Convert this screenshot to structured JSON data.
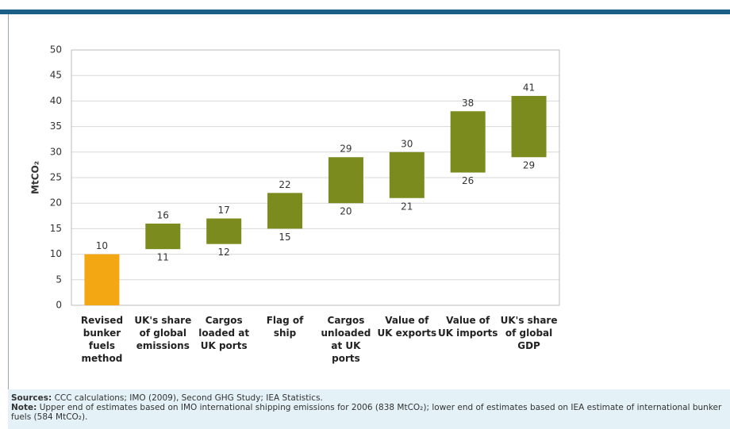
{
  "chart_data": {
    "type": "floating_bar",
    "y_label": "MtCO₂",
    "categories": [
      "Revised bunker fuels method",
      "UK's share of global emissions",
      "Cargos loaded at UK ports",
      "Flag of ship",
      "Cargos unloaded at UK ports",
      "Value of UK exports",
      "Value of UK imports",
      "UK's share of global GDP"
    ],
    "low": [
      0,
      11,
      12,
      15,
      20,
      21,
      26,
      29
    ],
    "high": [
      10,
      16,
      17,
      22,
      29,
      30,
      38,
      41
    ],
    "colors": [
      "#f3a712",
      "#7b8b1d",
      "#7b8b1d",
      "#7b8b1d",
      "#7b8b1d",
      "#7b8b1d",
      "#7b8b1d",
      "#7b8b1d"
    ],
    "ylim": [
      0,
      50
    ],
    "yticks": [
      0,
      5,
      10,
      15,
      20,
      25,
      30,
      35,
      40,
      45,
      50
    ],
    "grid": true
  },
  "footer": {
    "sources_label": "Sources:",
    "sources": "CCC calculations; IMO (2009), Second GHG Study; IEA Statistics.",
    "note_label": "Note:",
    "note": "Upper end of estimates based on IMO international shipping emissions for 2006 (838 MtCO₂); lower end of estimates based on IEA estimate of international bunker fuels (584 MtCO₂)."
  }
}
